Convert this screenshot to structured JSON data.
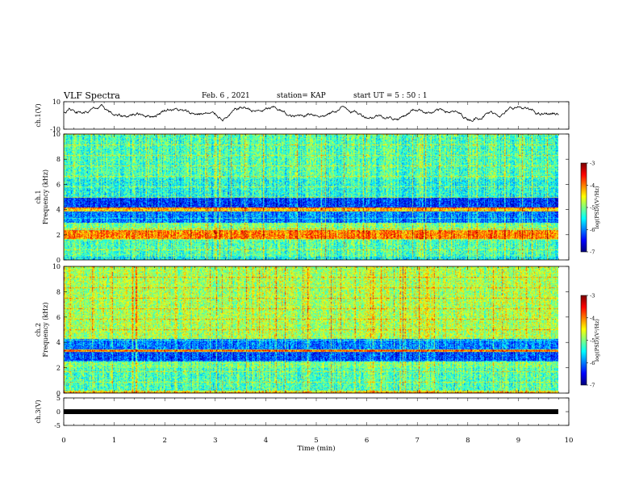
{
  "header": {
    "title": "VLF Spectra",
    "date": "Feb. 6 , 2021",
    "station": "station= KAP",
    "start": "start UT =  5 : 50 : 1"
  },
  "chart_data": [
    {
      "type": "line",
      "ylabel": "ch.1(V)",
      "ylim": [
        -10,
        10
      ],
      "yticks": [
        "10",
        "-10"
      ],
      "xlim": [
        0,
        10
      ],
      "description_values": {
        "x_range_min": [
          0,
          9.8
        ],
        "approx_level": 2,
        "noise_amplitude": 4
      }
    },
    {
      "type": "heatmap",
      "ylabel": "ch.1\nFrequency (kHz)",
      "ylim": [
        0,
        10
      ],
      "yticks": [
        "0",
        "2",
        "4",
        "6",
        "8",
        "10"
      ],
      "xlim": [
        0,
        10
      ],
      "data_xmax": 9.8,
      "colorbar": {
        "label": "log(PSD)(V²/Hz)",
        "range": [
          -7,
          -3
        ],
        "ticks": [
          "-3",
          "-4",
          "-5",
          "-6",
          "-7"
        ]
      },
      "bands_khz": [
        {
          "from": 0.0,
          "to": 0.3,
          "level": -5.5
        },
        {
          "from": 0.3,
          "to": 1.7,
          "level": -5.2
        },
        {
          "from": 1.7,
          "to": 2.4,
          "level": -4.0
        },
        {
          "from": 2.4,
          "to": 3.0,
          "level": -5.0
        },
        {
          "from": 3.0,
          "to": 3.9,
          "level": -6.0
        },
        {
          "from": 3.9,
          "to": 4.2,
          "level": -4.3
        },
        {
          "from": 4.2,
          "to": 5.0,
          "level": -6.3
        },
        {
          "from": 5.0,
          "to": 6.5,
          "level": -5.4
        },
        {
          "from": 6.5,
          "to": 10.0,
          "level": -5.2
        }
      ]
    },
    {
      "type": "heatmap",
      "ylabel": "ch.2\nFrequency (kHz)",
      "ylim": [
        0,
        10
      ],
      "yticks": [
        "0",
        "2",
        "4",
        "6",
        "8",
        "10"
      ],
      "xlim": [
        0,
        10
      ],
      "data_xmax": 9.8,
      "colorbar": {
        "label": "log(PSD)(V²/Hz)",
        "range": [
          -7,
          -3
        ],
        "ticks": [
          "-3",
          "-4",
          "-5",
          "-6",
          "-7"
        ]
      },
      "bands_khz": [
        {
          "from": 0.0,
          "to": 0.2,
          "level": -4.5
        },
        {
          "from": 0.2,
          "to": 2.0,
          "level": -5.2
        },
        {
          "from": 2.0,
          "to": 2.5,
          "level": -5.0
        },
        {
          "from": 2.5,
          "to": 3.3,
          "level": -6.2
        },
        {
          "from": 3.3,
          "to": 3.5,
          "level": -4.2
        },
        {
          "from": 3.5,
          "to": 4.3,
          "level": -6.0
        },
        {
          "from": 4.3,
          "to": 10.0,
          "level": -4.8
        }
      ]
    },
    {
      "type": "line",
      "ylabel": "ch.3(V)",
      "ylim": [
        -5,
        5
      ],
      "yticks": [
        "5",
        "0",
        "-5"
      ],
      "xlim": [
        0,
        10
      ],
      "xticks": [
        "0",
        "1",
        "2",
        "3",
        "4",
        "5",
        "6",
        "7",
        "8",
        "9",
        "10"
      ],
      "xlabel": "Time (min)",
      "constant_value": 0
    }
  ]
}
